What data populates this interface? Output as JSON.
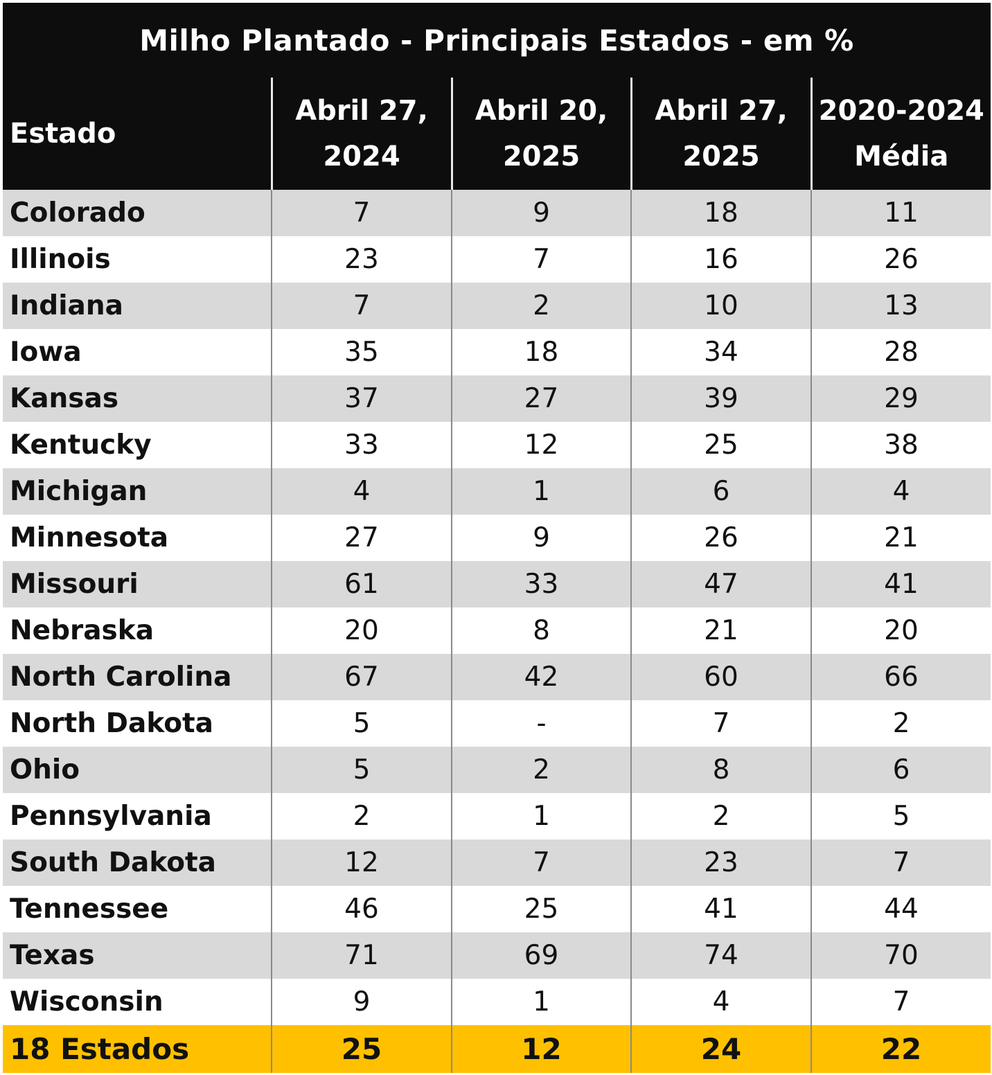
{
  "chart_data": {
    "type": "table",
    "title": "Milho Plantado - Principais Estados - em %",
    "columns": [
      {
        "line1": "Estado",
        "line2": ""
      },
      {
        "line1": "Abril 27,",
        "line2": "2024"
      },
      {
        "line1": "Abril 20,",
        "line2": "2025"
      },
      {
        "line1": "Abril 27,",
        "line2": "2025"
      },
      {
        "line1": "2020-2024",
        "line2": "Média"
      }
    ],
    "rows": [
      {
        "state": "Colorado",
        "values": [
          "7",
          "9",
          "18",
          "11"
        ]
      },
      {
        "state": "Illinois",
        "values": [
          "23",
          "7",
          "16",
          "26"
        ]
      },
      {
        "state": "Indiana",
        "values": [
          "7",
          "2",
          "10",
          "13"
        ]
      },
      {
        "state": "Iowa",
        "values": [
          "35",
          "18",
          "34",
          "28"
        ]
      },
      {
        "state": "Kansas",
        "values": [
          "37",
          "27",
          "39",
          "29"
        ]
      },
      {
        "state": "Kentucky",
        "values": [
          "33",
          "12",
          "25",
          "38"
        ]
      },
      {
        "state": "Michigan",
        "values": [
          "4",
          "1",
          "6",
          "4"
        ]
      },
      {
        "state": "Minnesota",
        "values": [
          "27",
          "9",
          "26",
          "21"
        ]
      },
      {
        "state": "Missouri",
        "values": [
          "61",
          "33",
          "47",
          "41"
        ]
      },
      {
        "state": "Nebraska",
        "values": [
          "20",
          "8",
          "21",
          "20"
        ]
      },
      {
        "state": "North Carolina",
        "values": [
          "67",
          "42",
          "60",
          "66"
        ]
      },
      {
        "state": "North Dakota",
        "values": [
          "5",
          "-",
          "7",
          "2"
        ]
      },
      {
        "state": "Ohio",
        "values": [
          "5",
          "2",
          "8",
          "6"
        ]
      },
      {
        "state": "Pennsylvania",
        "values": [
          "2",
          "1",
          "2",
          "5"
        ]
      },
      {
        "state": "South Dakota",
        "values": [
          "12",
          "7",
          "23",
          "7"
        ]
      },
      {
        "state": "Tennessee",
        "values": [
          "46",
          "25",
          "41",
          "44"
        ]
      },
      {
        "state": "Texas",
        "values": [
          "71",
          "69",
          "74",
          "70"
        ]
      },
      {
        "state": "Wisconsin",
        "values": [
          "9",
          "1",
          "4",
          "7"
        ]
      }
    ],
    "total": {
      "state": "18 Estados",
      "values": [
        "25",
        "12",
        "24",
        "22"
      ]
    }
  },
  "colors": {
    "header_bg": "#0d0d0d",
    "header_text": "#ffffff",
    "row_shade": "#d9d9d9",
    "row_plain": "#ffffff",
    "total_bg": "#ffc000"
  }
}
